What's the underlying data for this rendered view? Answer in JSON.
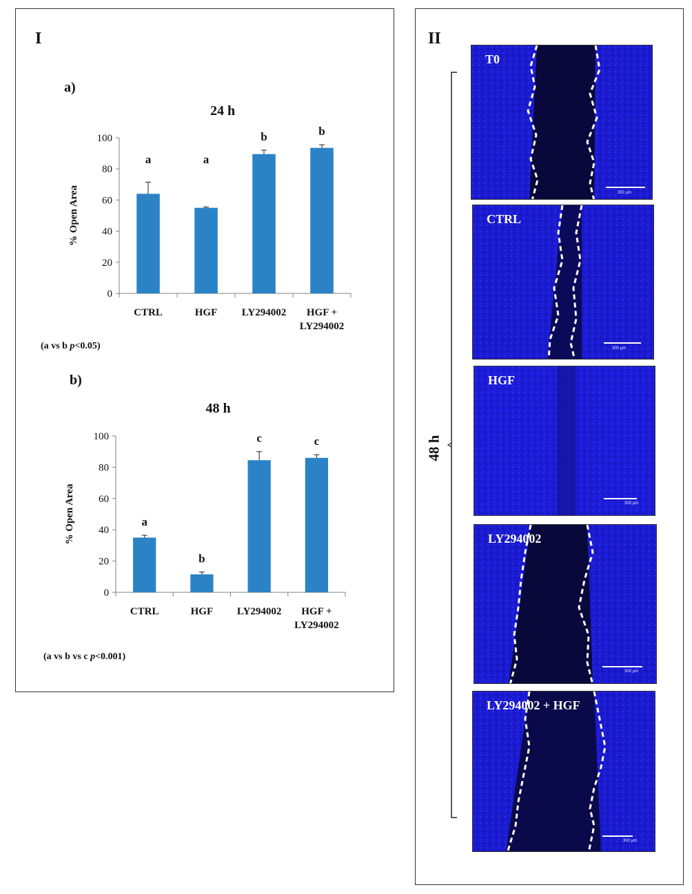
{
  "panel_I": {
    "label": "I",
    "sub_a": "a)",
    "sub_b": "b)",
    "note_a": {
      "prefix": "(a vs b ",
      "p": "p",
      "suffix": "<0.05)"
    },
    "note_b": {
      "prefix": "(a vs b vs c ",
      "p": "p",
      "suffix": "<0.001)"
    }
  },
  "panel_II": {
    "label": "II",
    "bracket_label": "48 h",
    "scale_bar_text": "300 µm",
    "images": [
      {
        "label": "T0"
      },
      {
        "label": "CTRL"
      },
      {
        "label": "HGF"
      },
      {
        "label": "LY294002"
      },
      {
        "label": "LY294002 + HGF"
      }
    ]
  },
  "colors": {
    "bar": "#2B83C5",
    "axis": "#808080",
    "micro_bg": "#1a1ad0",
    "gap": "#08083a"
  },
  "chart_data": [
    {
      "type": "bar",
      "title": "24 h",
      "ylabel": "% Open Area",
      "ylim": [
        0,
        100
      ],
      "yticks": [
        0,
        20,
        40,
        60,
        80,
        100
      ],
      "categories": [
        [
          "CTRL"
        ],
        [
          "HGF"
        ],
        [
          "LY294002"
        ],
        [
          "HGF +",
          "LY294002"
        ]
      ],
      "values": [
        64,
        55,
        89.5,
        93.5
      ],
      "errors": [
        7.5,
        0.5,
        2.5,
        2
      ],
      "significance": [
        "a",
        "a",
        "b",
        "b"
      ],
      "grid": false
    },
    {
      "type": "bar",
      "title": "48 h",
      "ylabel": "% Open Area",
      "ylim": [
        0,
        100
      ],
      "yticks": [
        0,
        20,
        40,
        60,
        80,
        100
      ],
      "categories": [
        [
          "CTRL"
        ],
        [
          "HGF"
        ],
        [
          "LY294002"
        ],
        [
          "HGF +",
          "LY294002"
        ]
      ],
      "values": [
        35,
        11.5,
        84.5,
        86
      ],
      "errors": [
        1.5,
        1.5,
        5.5,
        2
      ],
      "significance": [
        "a",
        "b",
        "c",
        "c"
      ],
      "grid": false
    }
  ]
}
